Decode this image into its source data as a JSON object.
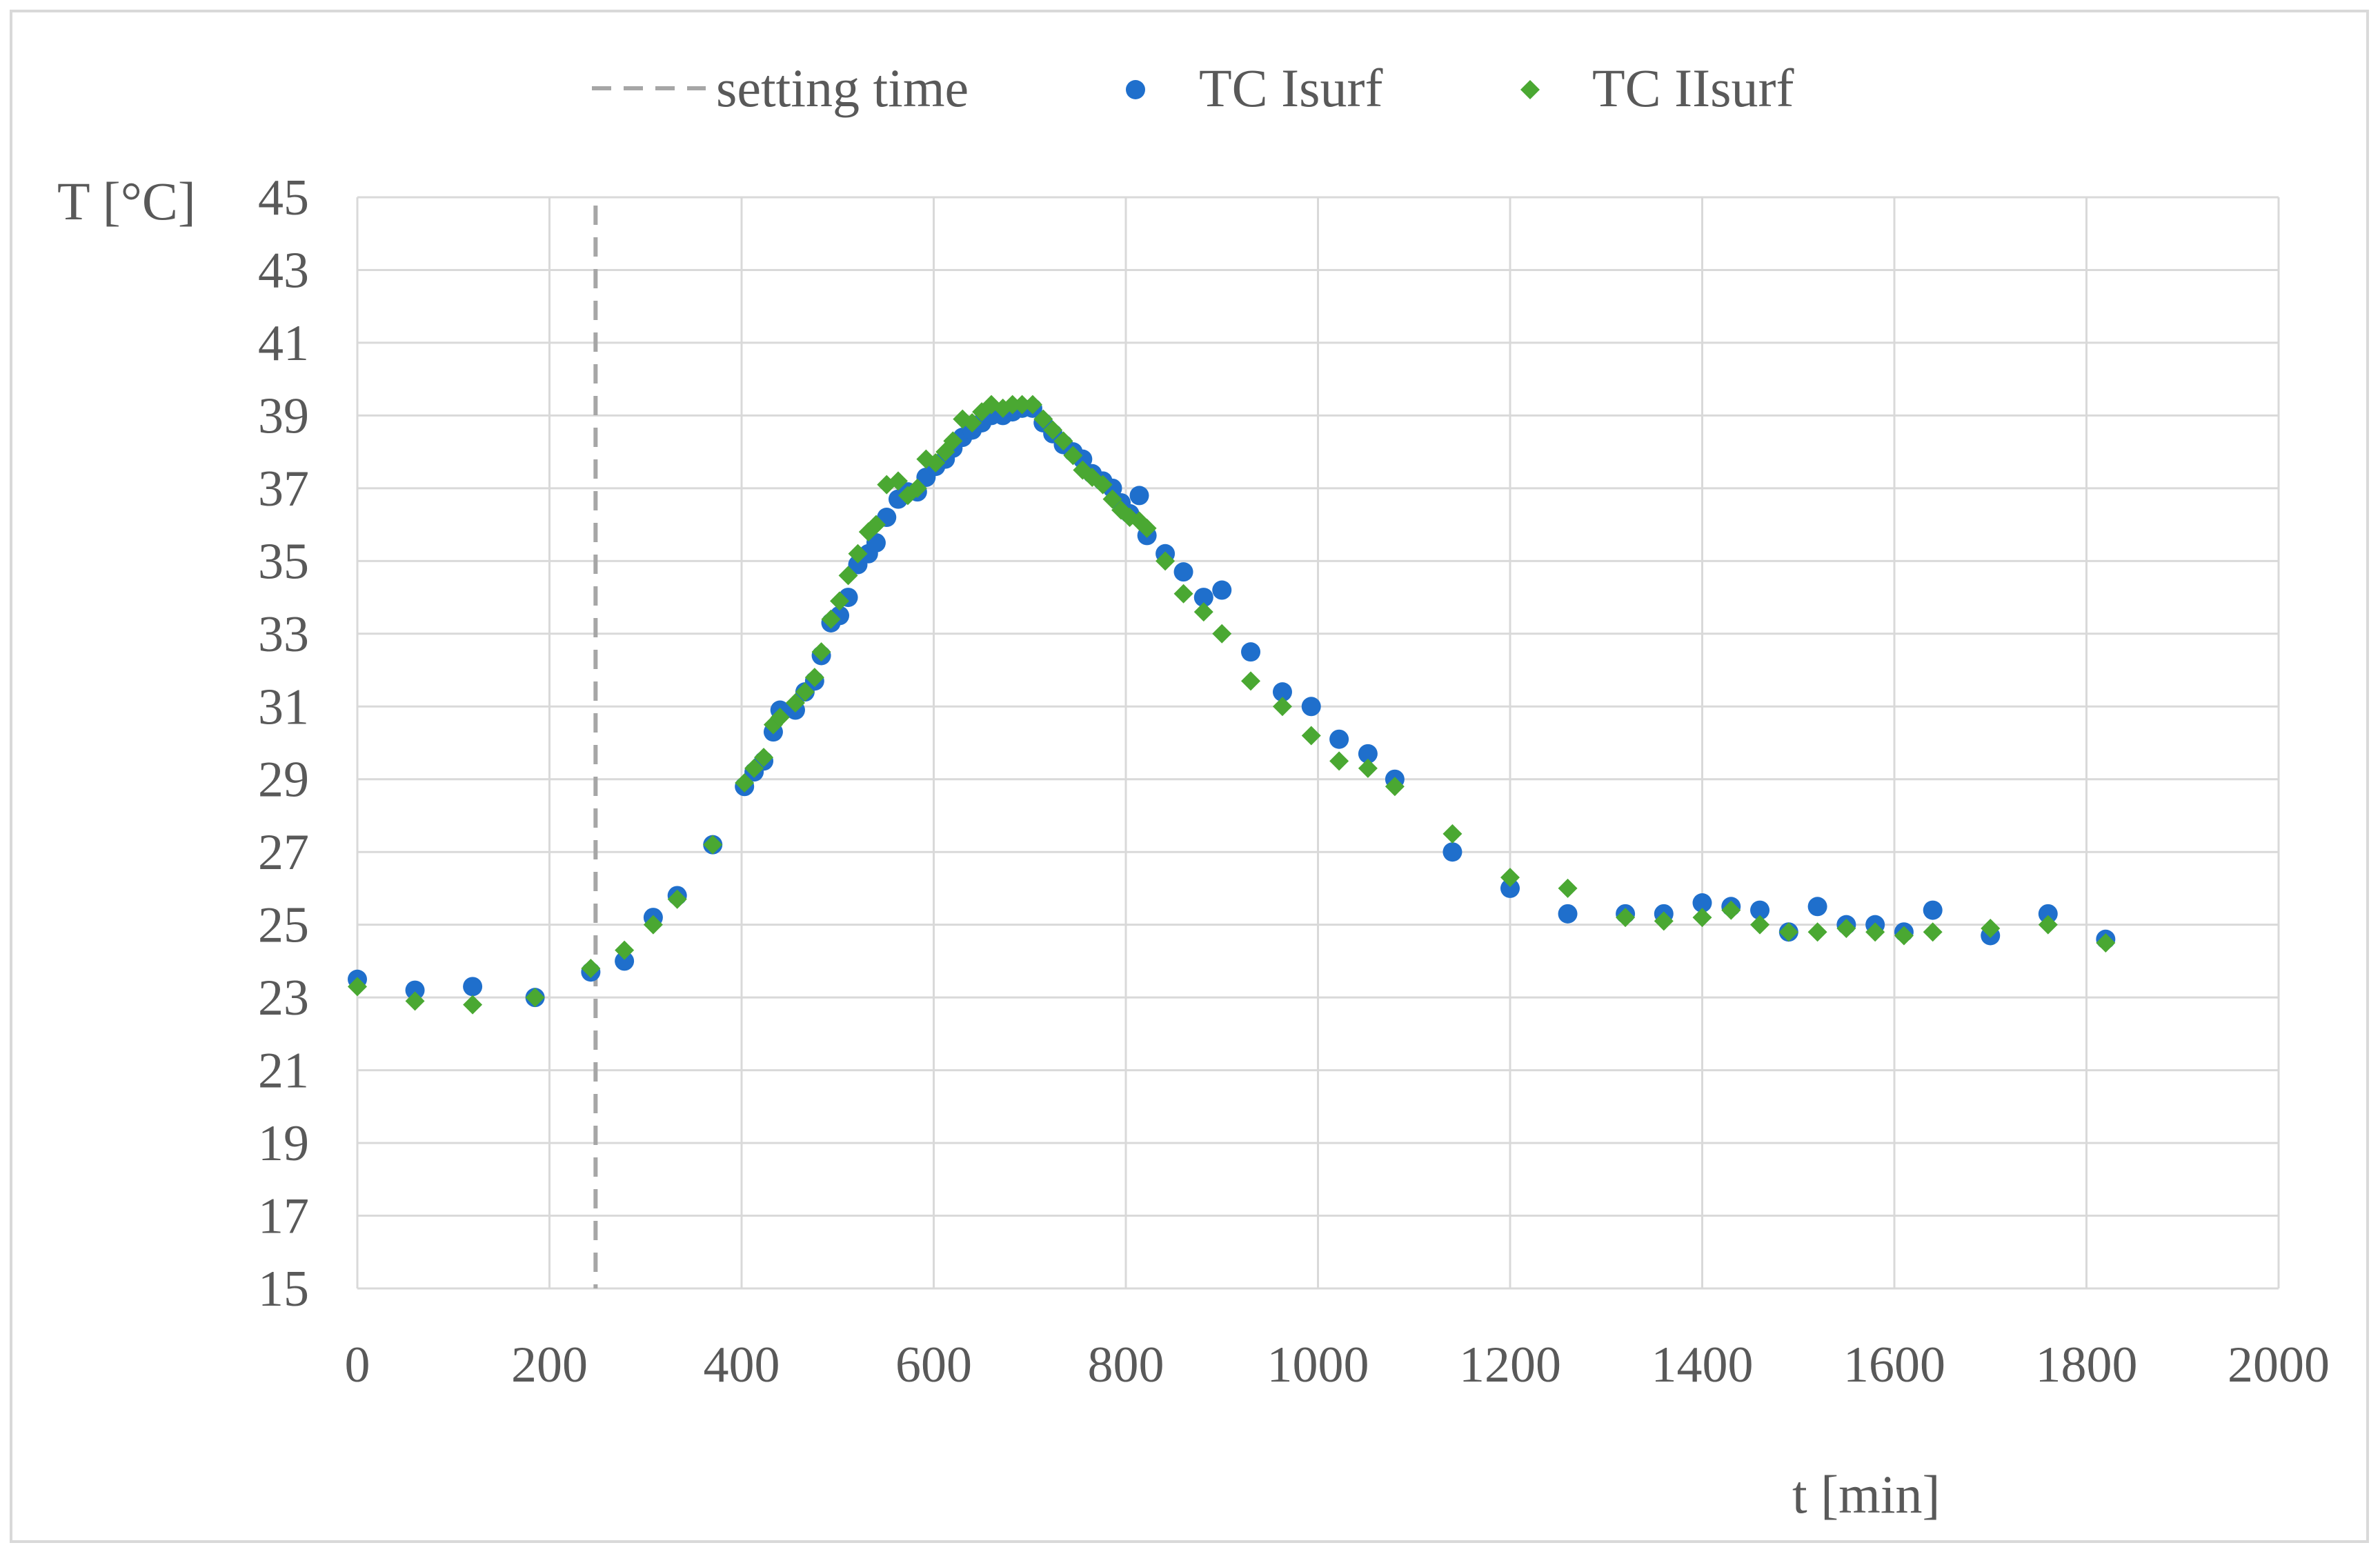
{
  "chart_data": {
    "type": "scatter",
    "xlabel": "t [min]",
    "ylabel": "T [°C]",
    "xlim": [
      0,
      2000
    ],
    "ylim": [
      15,
      45
    ],
    "x_ticks": [
      0,
      200,
      400,
      600,
      800,
      1000,
      1200,
      1400,
      1600,
      1800,
      2000
    ],
    "y_ticks": [
      15,
      17,
      19,
      21,
      23,
      25,
      27,
      29,
      31,
      33,
      35,
      37,
      39,
      41,
      43,
      45
    ],
    "grid": true,
    "legend_position": "top",
    "reference_line": {
      "name": "setting time",
      "x": 248,
      "style": "dashed",
      "color": "#a6a6a6"
    },
    "series": [
      {
        "name": "TC Isurf",
        "marker": "circle",
        "color": "#1f6fcc",
        "points": [
          [
            0,
            23.5
          ],
          [
            60,
            23.2
          ],
          [
            120,
            23.3
          ],
          [
            185,
            23.0
          ],
          [
            243,
            23.7
          ],
          [
            278,
            24.0
          ],
          [
            308,
            25.2
          ],
          [
            333,
            25.8
          ],
          [
            370,
            27.2
          ],
          [
            403,
            28.8
          ],
          [
            413,
            29.2
          ],
          [
            423,
            29.5
          ],
          [
            433,
            30.3
          ],
          [
            440,
            30.9
          ],
          [
            456,
            30.9
          ],
          [
            466,
            31.4
          ],
          [
            476,
            31.7
          ],
          [
            483,
            32.4
          ],
          [
            493,
            33.3
          ],
          [
            502,
            33.5
          ],
          [
            511,
            34.0
          ],
          [
            521,
            34.9
          ],
          [
            532,
            35.2
          ],
          [
            540,
            35.5
          ],
          [
            551,
            36.2
          ],
          [
            563,
            36.7
          ],
          [
            573,
            36.9
          ],
          [
            583,
            36.9
          ],
          [
            592,
            37.3
          ],
          [
            602,
            37.6
          ],
          [
            612,
            37.8
          ],
          [
            620,
            38.1
          ],
          [
            630,
            38.4
          ],
          [
            640,
            38.6
          ],
          [
            650,
            38.8
          ],
          [
            660,
            39.0
          ],
          [
            672,
            39.0
          ],
          [
            682,
            39.1
          ],
          [
            692,
            39.2
          ],
          [
            703,
            39.2
          ],
          [
            714,
            38.8
          ],
          [
            724,
            38.5
          ],
          [
            735,
            38.2
          ],
          [
            745,
            38.0
          ],
          [
            755,
            37.8
          ],
          [
            765,
            37.4
          ],
          [
            776,
            37.2
          ],
          [
            786,
            37.0
          ],
          [
            795,
            36.6
          ],
          [
            804,
            36.3
          ],
          [
            814,
            36.8
          ],
          [
            822,
            35.7
          ],
          [
            841,
            35.2
          ],
          [
            860,
            34.7
          ],
          [
            881,
            34.0
          ],
          [
            900,
            34.2
          ],
          [
            930,
            32.5
          ],
          [
            963,
            31.4
          ],
          [
            993,
            31.0
          ],
          [
            1022,
            30.1
          ],
          [
            1052,
            29.7
          ],
          [
            1080,
            29.0
          ],
          [
            1140,
            27.0
          ],
          [
            1200,
            26.0
          ],
          [
            1260,
            25.3
          ],
          [
            1320,
            25.3
          ],
          [
            1360,
            25.3
          ],
          [
            1400,
            25.6
          ],
          [
            1430,
            25.5
          ],
          [
            1460,
            25.4
          ],
          [
            1490,
            24.8
          ],
          [
            1520,
            25.5
          ],
          [
            1550,
            25.0
          ],
          [
            1580,
            25.0
          ],
          [
            1610,
            24.8
          ],
          [
            1640,
            25.4
          ],
          [
            1700,
            24.7
          ],
          [
            1760,
            25.3
          ],
          [
            1820,
            24.6
          ]
        ]
      },
      {
        "name": "TC IIsurf",
        "marker": "diamond",
        "color": "#4aa832",
        "points": [
          [
            0,
            23.3
          ],
          [
            60,
            22.9
          ],
          [
            120,
            22.8
          ],
          [
            185,
            23.0
          ],
          [
            243,
            23.8
          ],
          [
            278,
            24.3
          ],
          [
            308,
            25.0
          ],
          [
            333,
            25.7
          ],
          [
            370,
            27.2
          ],
          [
            403,
            28.9
          ],
          [
            413,
            29.3
          ],
          [
            423,
            29.6
          ],
          [
            433,
            30.5
          ],
          [
            440,
            30.7
          ],
          [
            456,
            31.1
          ],
          [
            466,
            31.4
          ],
          [
            476,
            31.8
          ],
          [
            483,
            32.5
          ],
          [
            493,
            33.4
          ],
          [
            502,
            33.9
          ],
          [
            511,
            34.6
          ],
          [
            521,
            35.2
          ],
          [
            532,
            35.8
          ],
          [
            540,
            36.0
          ],
          [
            551,
            37.1
          ],
          [
            563,
            37.2
          ],
          [
            573,
            36.8
          ],
          [
            583,
            37.0
          ],
          [
            592,
            37.8
          ],
          [
            602,
            37.7
          ],
          [
            612,
            38.0
          ],
          [
            620,
            38.3
          ],
          [
            630,
            38.9
          ],
          [
            640,
            38.8
          ],
          [
            650,
            39.1
          ],
          [
            660,
            39.3
          ],
          [
            672,
            39.2
          ],
          [
            682,
            39.3
          ],
          [
            692,
            39.3
          ],
          [
            703,
            39.3
          ],
          [
            714,
            38.9
          ],
          [
            724,
            38.6
          ],
          [
            735,
            38.3
          ],
          [
            745,
            37.9
          ],
          [
            755,
            37.5
          ],
          [
            765,
            37.3
          ],
          [
            776,
            37.1
          ],
          [
            786,
            36.7
          ],
          [
            795,
            36.4
          ],
          [
            804,
            36.2
          ],
          [
            814,
            36.1
          ],
          [
            822,
            35.9
          ],
          [
            841,
            35.0
          ],
          [
            860,
            34.1
          ],
          [
            881,
            33.6
          ],
          [
            900,
            33.0
          ],
          [
            930,
            31.7
          ],
          [
            963,
            31.0
          ],
          [
            993,
            30.2
          ],
          [
            1022,
            29.5
          ],
          [
            1052,
            29.3
          ],
          [
            1080,
            28.8
          ],
          [
            1140,
            27.5
          ],
          [
            1200,
            26.3
          ],
          [
            1260,
            26.0
          ],
          [
            1320,
            25.2
          ],
          [
            1360,
            25.1
          ],
          [
            1400,
            25.2
          ],
          [
            1430,
            25.4
          ],
          [
            1460,
            25.0
          ],
          [
            1490,
            24.8
          ],
          [
            1520,
            24.8
          ],
          [
            1550,
            24.9
          ],
          [
            1580,
            24.8
          ],
          [
            1610,
            24.7
          ],
          [
            1640,
            24.8
          ],
          [
            1700,
            24.9
          ],
          [
            1760,
            25.0
          ],
          [
            1820,
            24.5
          ]
        ]
      }
    ]
  }
}
